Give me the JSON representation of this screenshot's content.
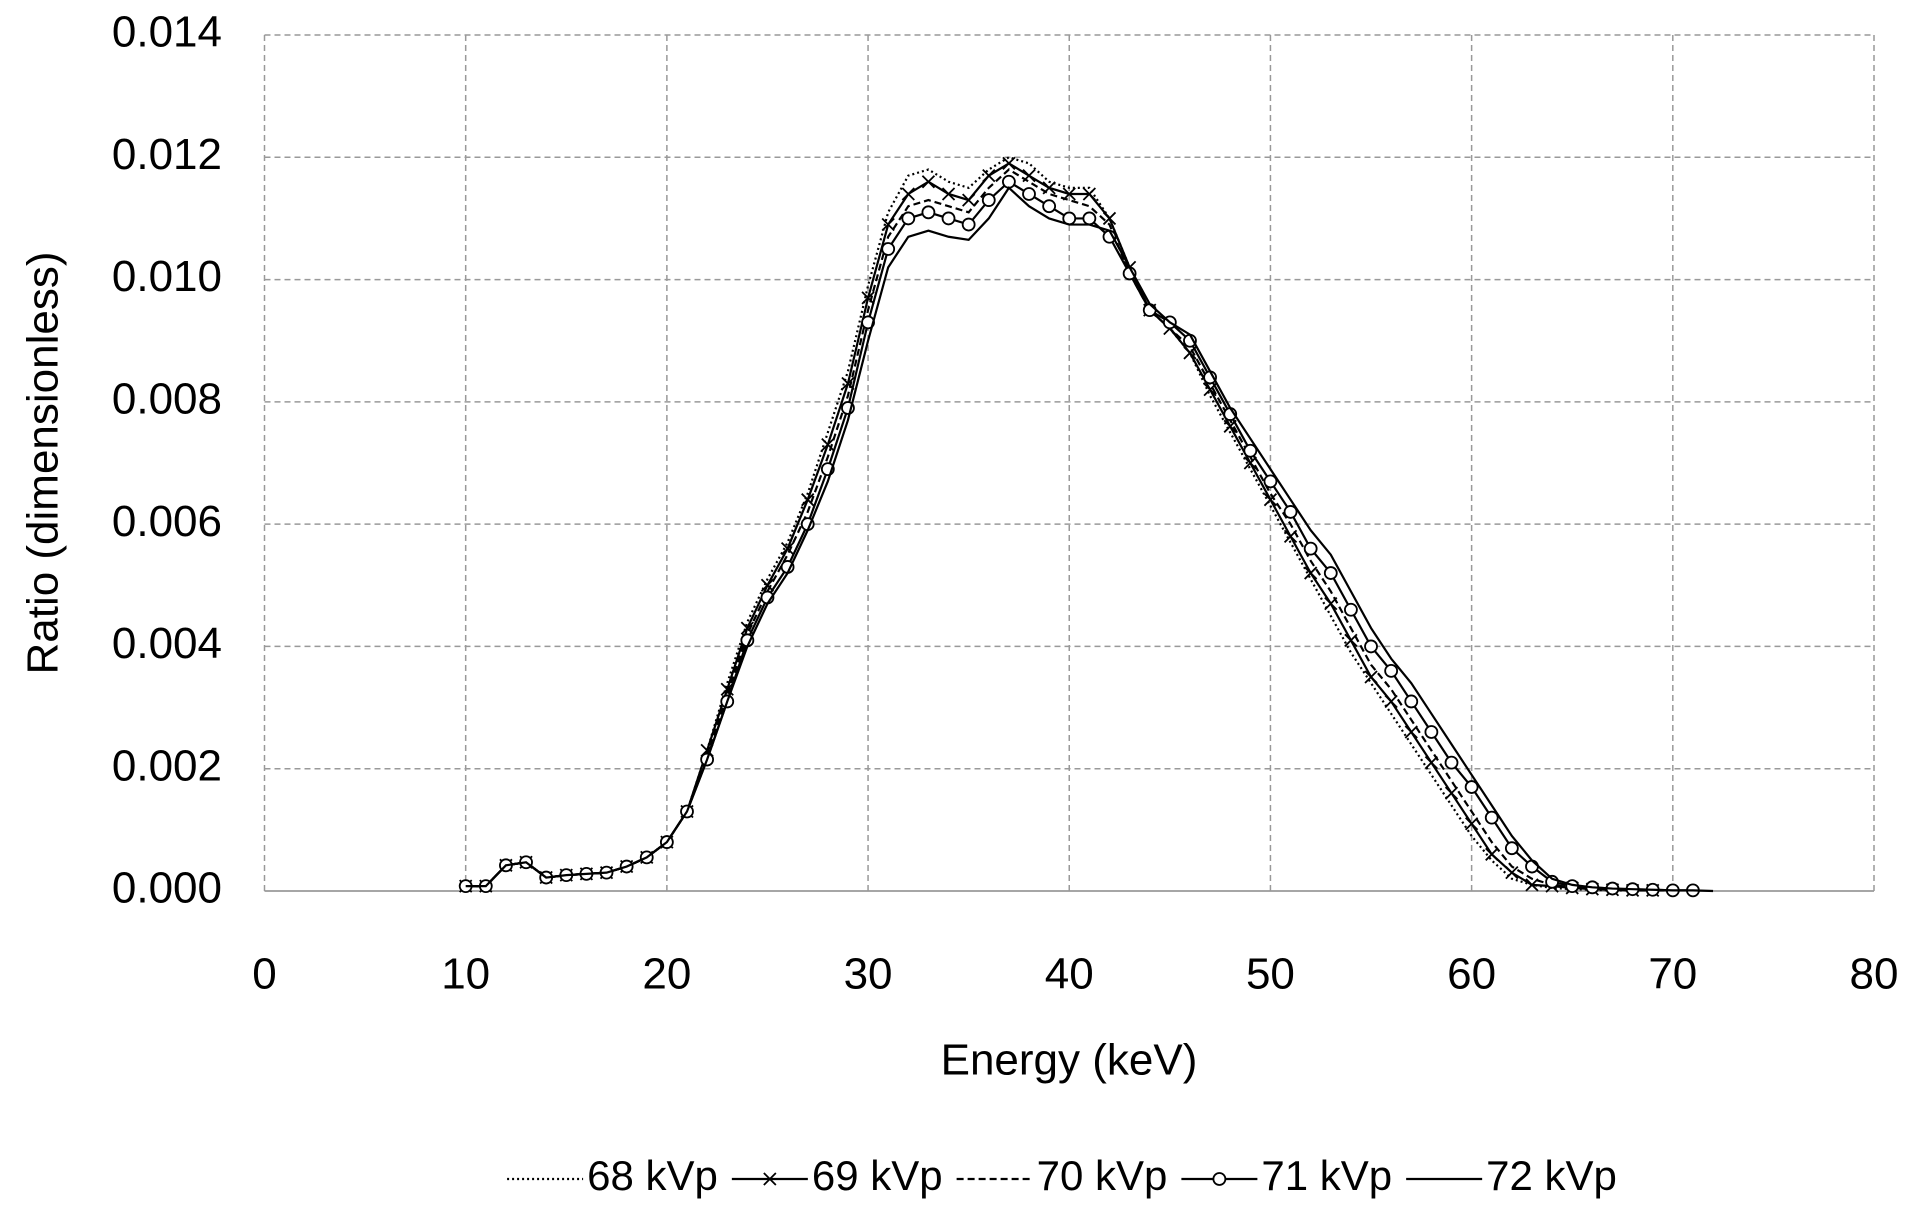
{
  "chart_data": {
    "type": "line",
    "x_label": "Energy (keV)",
    "y_label": "Ratio (dimensionless)",
    "x": [
      10,
      11,
      12,
      13,
      14,
      15,
      16,
      17,
      18,
      19,
      20,
      21,
      22,
      23,
      24,
      25,
      26,
      27,
      28,
      29,
      30,
      31,
      32,
      33,
      34,
      35,
      36,
      37,
      38,
      39,
      40,
      41,
      42,
      43,
      44,
      45,
      46,
      47,
      48,
      49,
      50,
      51,
      52,
      53,
      54,
      55,
      56,
      57,
      58,
      59,
      60,
      61,
      62,
      63,
      64,
      65,
      66,
      67,
      68,
      69,
      70,
      71,
      72
    ],
    "xlim": [
      0,
      80
    ],
    "xticks": [
      0,
      10,
      20,
      30,
      40,
      50,
      60,
      70,
      80
    ],
    "ylim": [
      0,
      0.014
    ],
    "yticks": [
      {
        "value": 0,
        "label": "0.000"
      },
      {
        "value": 0.002,
        "label": "0.002"
      },
      {
        "value": 0.004,
        "label": "0.004"
      },
      {
        "value": 0.006,
        "label": "0.006"
      },
      {
        "value": 0.008,
        "label": "0.008"
      },
      {
        "value": 0.01,
        "label": "0.010"
      },
      {
        "value": 0.012,
        "label": "0.012"
      },
      {
        "value": 0.014,
        "label": "0.014"
      }
    ],
    "grid": true,
    "legend": "bottom",
    "series": [
      {
        "name": "68 kVp",
        "color": "#000000",
        "dash": "dotted",
        "marker": "none",
        "values": [
          8e-05,
          8e-05,
          0.00042,
          0.00047,
          0.00022,
          0.00026,
          0.00028,
          0.0003,
          0.0004,
          0.00055,
          0.0008,
          0.0013,
          0.0023,
          0.0034,
          0.0044,
          0.0051,
          0.0057,
          0.0065,
          0.0075,
          0.0085,
          0.0099,
          0.0111,
          0.0117,
          0.0118,
          0.0116,
          0.0115,
          0.0118,
          0.012,
          0.0119,
          0.0116,
          0.0115,
          0.0115,
          0.011,
          0.0102,
          0.0095,
          0.0092,
          0.0088,
          0.0081,
          0.0075,
          0.0069,
          0.0063,
          0.0057,
          0.0051,
          0.0045,
          0.0039,
          0.0034,
          0.0029,
          0.0024,
          0.0019,
          0.0014,
          0.0009,
          0.0005,
          0.0002,
          0.0001,
          5e-05,
          3e-05,
          2e-05,
          1e-05,
          1e-05,
          null,
          null,
          null,
          null
        ]
      },
      {
        "name": "69 kVp",
        "color": "#000000",
        "dash": "solid",
        "marker": "x",
        "values": [
          8e-05,
          8e-05,
          0.00042,
          0.00047,
          0.00022,
          0.00026,
          0.00028,
          0.0003,
          0.0004,
          0.00055,
          0.0008,
          0.0013,
          0.0023,
          0.0033,
          0.0043,
          0.005,
          0.0056,
          0.0064,
          0.0073,
          0.0083,
          0.0097,
          0.0109,
          0.0114,
          0.0116,
          0.0114,
          0.0113,
          0.0117,
          0.0119,
          0.0117,
          0.0115,
          0.0114,
          0.0114,
          0.011,
          0.0102,
          0.0095,
          0.0092,
          0.0088,
          0.0082,
          0.0076,
          0.007,
          0.0064,
          0.0058,
          0.0052,
          0.0047,
          0.0041,
          0.0035,
          0.0031,
          0.0026,
          0.0021,
          0.0016,
          0.0011,
          0.0006,
          0.0003,
          0.0001,
          8e-05,
          5e-05,
          3e-05,
          2e-05,
          1e-05,
          1e-05,
          null,
          null,
          null
        ]
      },
      {
        "name": "70 kVp",
        "color": "#000000",
        "dash": "dashed",
        "marker": "none",
        "values": [
          8e-05,
          8e-05,
          0.00042,
          0.00047,
          0.00022,
          0.00026,
          0.00028,
          0.0003,
          0.0004,
          0.00055,
          0.0008,
          0.0013,
          0.0022,
          0.0032,
          0.0042,
          0.0049,
          0.0055,
          0.0062,
          0.0071,
          0.0081,
          0.0095,
          0.0107,
          0.0112,
          0.0113,
          0.0112,
          0.0111,
          0.0115,
          0.0118,
          0.0116,
          0.0114,
          0.0113,
          0.0112,
          0.0109,
          0.0101,
          0.0095,
          0.0092,
          0.0089,
          0.0083,
          0.0077,
          0.0071,
          0.0065,
          0.006,
          0.0054,
          0.0049,
          0.0043,
          0.0037,
          0.0033,
          0.0028,
          0.0023,
          0.0018,
          0.0013,
          0.0008,
          0.0004,
          0.0002,
          0.0001,
          6e-05,
          4e-05,
          3e-05,
          2e-05,
          1e-05,
          1e-05,
          null,
          null
        ]
      },
      {
        "name": "71 kVp",
        "color": "#000000",
        "dash": "solid",
        "marker": "circle",
        "values": [
          8e-05,
          8e-05,
          0.00042,
          0.00047,
          0.00022,
          0.00026,
          0.00028,
          0.0003,
          0.0004,
          0.00055,
          0.0008,
          0.0013,
          0.00215,
          0.0031,
          0.0041,
          0.0048,
          0.0053,
          0.006,
          0.0069,
          0.0079,
          0.0093,
          0.0105,
          0.011,
          0.0111,
          0.011,
          0.0109,
          0.0113,
          0.0116,
          0.0114,
          0.0112,
          0.011,
          0.011,
          0.0107,
          0.0101,
          0.0095,
          0.0093,
          0.009,
          0.0084,
          0.0078,
          0.0072,
          0.0067,
          0.0062,
          0.0056,
          0.0052,
          0.0046,
          0.004,
          0.0036,
          0.0031,
          0.0026,
          0.0021,
          0.0017,
          0.0012,
          0.0007,
          0.0004,
          0.00015,
          8e-05,
          6e-05,
          4e-05,
          3e-05,
          2e-05,
          1e-05,
          1e-05,
          null
        ]
      },
      {
        "name": "72 kVp",
        "color": "#000000",
        "dash": "solid",
        "marker": "none",
        "values": [
          8e-05,
          8e-05,
          0.00042,
          0.00047,
          0.00022,
          0.00026,
          0.00028,
          0.0003,
          0.0004,
          0.00055,
          0.0008,
          0.0013,
          0.00215,
          0.0031,
          0.004,
          0.0047,
          0.0052,
          0.0059,
          0.0067,
          0.0077,
          0.009,
          0.0102,
          0.0107,
          0.0108,
          0.0107,
          0.01065,
          0.011,
          0.0115,
          0.0112,
          0.011,
          0.0109,
          0.0109,
          0.0108,
          0.0102,
          0.0096,
          0.0093,
          0.0091,
          0.0085,
          0.0079,
          0.0074,
          0.0069,
          0.0064,
          0.0059,
          0.0055,
          0.0049,
          0.0043,
          0.0038,
          0.0034,
          0.0029,
          0.0024,
          0.0019,
          0.0014,
          0.0009,
          0.0005,
          0.0002,
          0.0001,
          6e-05,
          4e-05,
          3e-05,
          2e-05,
          1e-05,
          1e-05,
          0
        ]
      }
    ]
  }
}
